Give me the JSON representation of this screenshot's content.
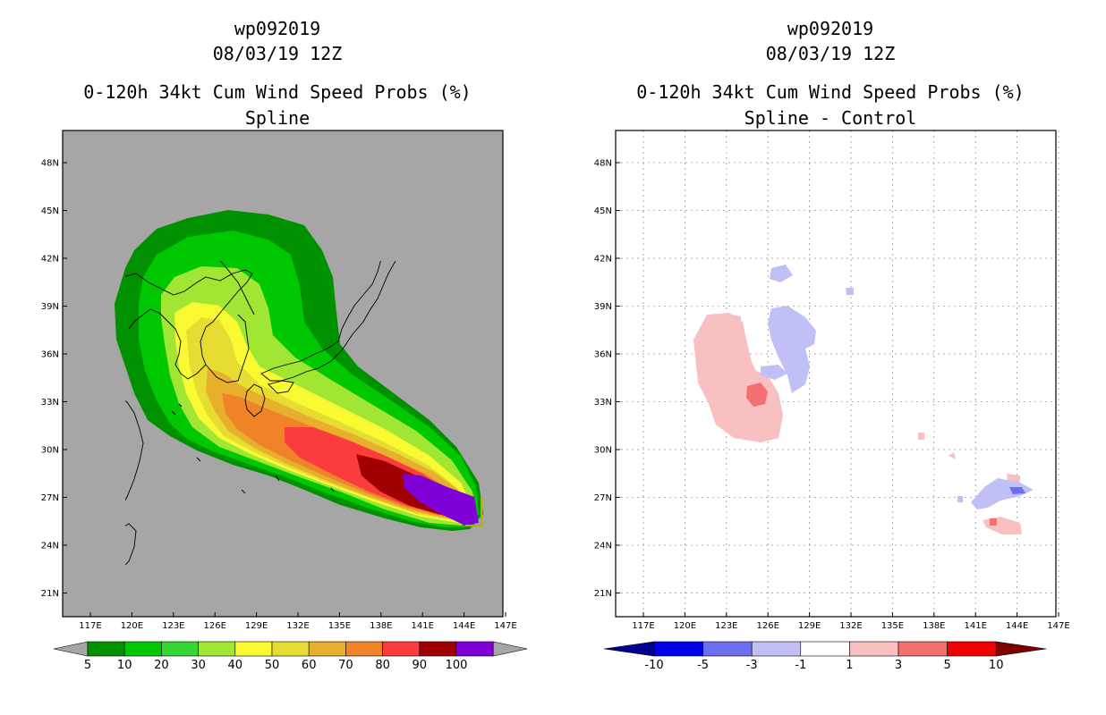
{
  "left": {
    "storm": "wp092019",
    "datetime": "08/03/19 12Z",
    "product": "0-120h 34kt Cum Wind Speed Probs (%)",
    "variant": "Spline"
  },
  "right": {
    "storm": "wp092019",
    "datetime": "08/03/19 12Z",
    "product": "0-120h 34kt Cum Wind Speed Probs (%)",
    "variant": "Spline - Control"
  },
  "axes": {
    "lat_labels": [
      "48N",
      "45N",
      "42N",
      "39N",
      "36N",
      "33N",
      "30N",
      "27N",
      "24N",
      "21N"
    ],
    "lon_labels": [
      "117E",
      "120E",
      "123E",
      "126E",
      "129E",
      "132E",
      "135E",
      "138E",
      "141E",
      "144E",
      "147E"
    ]
  },
  "left_colorbar": {
    "labels": [
      "5",
      "10",
      "20",
      "30",
      "40",
      "50",
      "60",
      "70",
      "80",
      "90",
      "100"
    ],
    "colors": [
      "#009100",
      "#00c800",
      "#33d633",
      "#a0e632",
      "#fafa32",
      "#e6dc32",
      "#e6af2d",
      "#f08228",
      "#fa3c3c",
      "#a00000",
      "#8000d8"
    ],
    "end_color": "#a6a6a6"
  },
  "right_colorbar": {
    "labels": [
      "-10",
      "-5",
      "-3",
      "-1",
      "1",
      "3",
      "5",
      "10"
    ],
    "colors": [
      "#000090",
      "#0000e6",
      "#6e6ef0",
      "#c0c0f6",
      "#ffffff",
      "#f8c0c0",
      "#f47070",
      "#f00000",
      "#800000"
    ]
  }
}
